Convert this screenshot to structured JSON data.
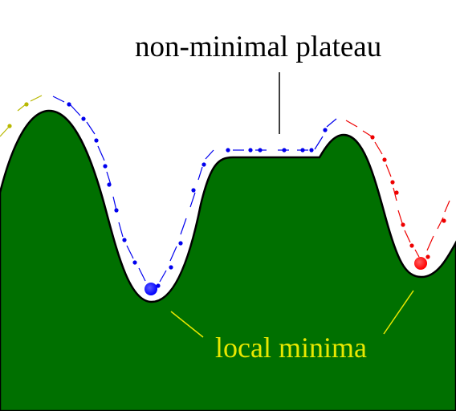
{
  "labels": {
    "plateau": "non-minimal plateau",
    "minima": "local minima"
  },
  "colors": {
    "background": "#ffffff",
    "terrain": "#007000",
    "terrain_outline": "#000000",
    "plateau_label": "#000000",
    "minima_label": "#e8e800",
    "minima_pointer": "#e8e800",
    "path_yellow": "#b8b800",
    "path_blue": "#0000ee",
    "path_red": "#ee0000",
    "ball_blue": "#0000ff",
    "ball_red": "#ff0000"
  },
  "elements": {
    "terrain": "landscape-hill",
    "paths": [
      "search-path-yellow",
      "search-path-blue",
      "search-path-red"
    ],
    "balls": [
      "ball-blue",
      "ball-red"
    ]
  }
}
